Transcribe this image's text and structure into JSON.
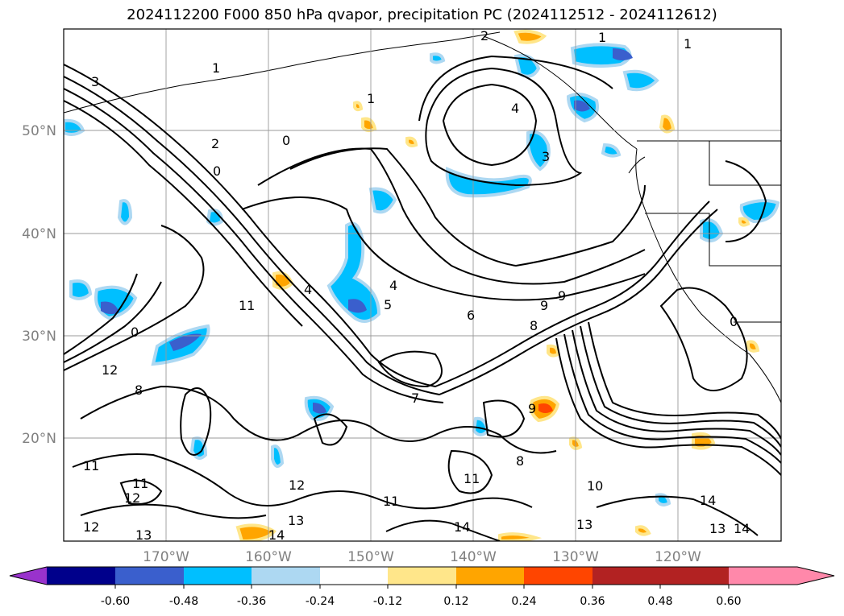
{
  "title": "2024112200 F000 850 hPa qvapor, precipitation PC (2024112512 - 2024112612)",
  "lat_labels": [
    "50°N",
    "40°N",
    "30°N",
    "20°N"
  ],
  "lon_labels": [
    "170°W",
    "160°W",
    "150°W",
    "140°W",
    "130°W",
    "120°W"
  ],
  "colorbar": {
    "ticks": [
      "-0.60",
      "-0.48",
      "-0.36",
      "-0.24",
      "-0.12",
      "0.12",
      "0.24",
      "0.36",
      "0.48",
      "0.60"
    ],
    "colors": [
      "#9932cc",
      "#00008b",
      "#3a5fcd",
      "#00bfff",
      "#add8f2",
      "#ffffff",
      "#ffe68a",
      "#ffa500",
      "#ff4500",
      "#b22222",
      "#ff88aa"
    ]
  },
  "contour_labels": [
    "1",
    "2",
    "3",
    "4",
    "5",
    "6",
    "7",
    "8",
    "9",
    "10",
    "11",
    "12",
    "13",
    "14",
    "0"
  ]
}
